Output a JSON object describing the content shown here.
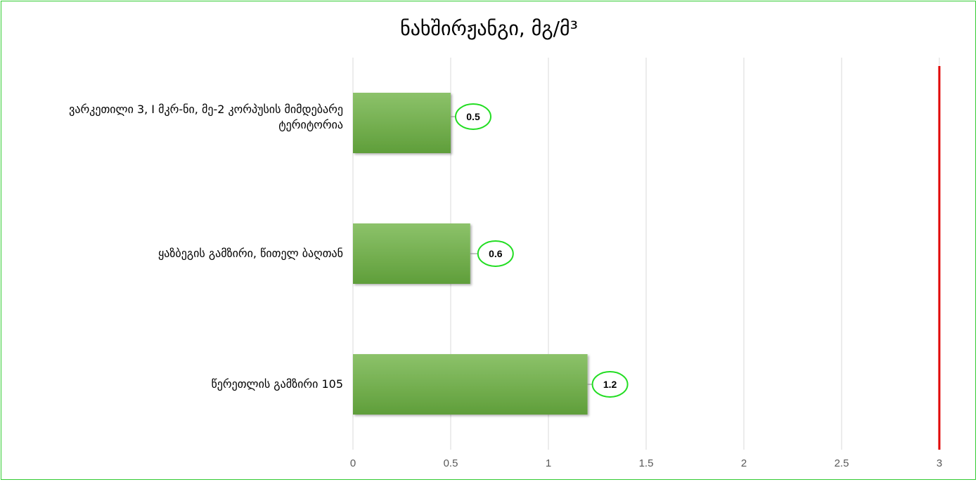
{
  "chart_data": {
    "type": "bar",
    "orientation": "horizontal",
    "title": "ნახშირჟანგი, მგ/მ³",
    "categories": [
      "ვარკეთილი 3, I მკრ-ნი, მე-2 კორპუსის მიმდებარე ტერიტორია",
      "ყაზბეგის გამზირი, წითელ ბაღთან",
      "წერეთლის გამზირი 105"
    ],
    "values": [
      0.5,
      0.6,
      1.2
    ],
    "data_labels": [
      "0.5",
      "0.6",
      "1.2"
    ],
    "x_ticks": [
      "0",
      "0.5",
      "1",
      "1.5",
      "2",
      "2.5",
      "3"
    ],
    "xlim": [
      0,
      3
    ],
    "reference_line": {
      "value": 3,
      "color": "#e00000"
    },
    "grid": true,
    "legend": "none",
    "colors": {
      "bar_top": "#8cc26a",
      "bar_bottom": "#5f9e3a",
      "label_border": "#22dd22",
      "grid": "#d9d9d9",
      "frame": "#33cc33"
    }
  }
}
